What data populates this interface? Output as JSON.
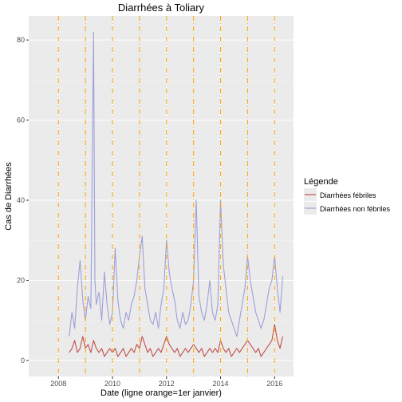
{
  "chart_data": {
    "type": "line",
    "title": "Diarrhées à Toliary",
    "xlabel": "Date (ligne orange=1er janvier)",
    "ylabel": "Cas de Diarrhées",
    "xlim": [
      2006.9,
      2016.7
    ],
    "ylim": [
      -4,
      86
    ],
    "x_ticks": [
      2008,
      2010,
      2012,
      2014,
      2016
    ],
    "y_ticks": [
      0,
      20,
      40,
      60,
      80
    ],
    "january_lines": [
      2008,
      2009,
      2010,
      2011,
      2012,
      2013,
      2014,
      2015,
      2016
    ],
    "grid": true,
    "legend": {
      "title": "Légende",
      "position": "right"
    },
    "colors": {
      "panel_bg": "#ebebeb",
      "grid_major": "#ffffff",
      "january_line": "#ffa500",
      "febrile": "#c0504d",
      "non_febrile": "#9f9fd8"
    },
    "series": [
      {
        "name": "Diarrhées fébriles",
        "points": [
          [
            2008.4,
            2
          ],
          [
            2008.5,
            3
          ],
          [
            2008.6,
            5
          ],
          [
            2008.7,
            2
          ],
          [
            2008.8,
            3
          ],
          [
            2008.9,
            6
          ],
          [
            2009.0,
            3
          ],
          [
            2009.1,
            4
          ],
          [
            2009.2,
            2
          ],
          [
            2009.3,
            5
          ],
          [
            2009.4,
            3
          ],
          [
            2009.5,
            2
          ],
          [
            2009.6,
            3
          ],
          [
            2009.7,
            1
          ],
          [
            2009.8,
            2
          ],
          [
            2009.9,
            3
          ],
          [
            2010.0,
            2
          ],
          [
            2010.1,
            3
          ],
          [
            2010.2,
            1
          ],
          [
            2010.3,
            2
          ],
          [
            2010.4,
            3
          ],
          [
            2010.5,
            1
          ],
          [
            2010.6,
            2
          ],
          [
            2010.7,
            3
          ],
          [
            2010.8,
            2
          ],
          [
            2010.9,
            4
          ],
          [
            2011.0,
            3
          ],
          [
            2011.1,
            6
          ],
          [
            2011.2,
            4
          ],
          [
            2011.3,
            2
          ],
          [
            2011.4,
            3
          ],
          [
            2011.5,
            1
          ],
          [
            2011.6,
            2
          ],
          [
            2011.7,
            3
          ],
          [
            2011.8,
            2
          ],
          [
            2011.9,
            4
          ],
          [
            2012.0,
            6
          ],
          [
            2012.1,
            4
          ],
          [
            2012.2,
            3
          ],
          [
            2012.3,
            2
          ],
          [
            2012.4,
            3
          ],
          [
            2012.5,
            1
          ],
          [
            2012.6,
            2
          ],
          [
            2012.7,
            3
          ],
          [
            2012.8,
            2
          ],
          [
            2012.9,
            3
          ],
          [
            2013.0,
            4
          ],
          [
            2013.1,
            3
          ],
          [
            2013.2,
            2
          ],
          [
            2013.3,
            3
          ],
          [
            2013.4,
            1
          ],
          [
            2013.5,
            2
          ],
          [
            2013.6,
            3
          ],
          [
            2013.7,
            2
          ],
          [
            2013.8,
            3
          ],
          [
            2013.9,
            2
          ],
          [
            2014.0,
            5
          ],
          [
            2014.1,
            3
          ],
          [
            2014.2,
            2
          ],
          [
            2014.3,
            3
          ],
          [
            2014.4,
            1
          ],
          [
            2014.5,
            2
          ],
          [
            2014.6,
            3
          ],
          [
            2014.7,
            2
          ],
          [
            2014.8,
            3
          ],
          [
            2014.9,
            4
          ],
          [
            2015.0,
            5
          ],
          [
            2015.1,
            4
          ],
          [
            2015.2,
            3
          ],
          [
            2015.3,
            2
          ],
          [
            2015.4,
            3
          ],
          [
            2015.5,
            1
          ],
          [
            2015.6,
            2
          ],
          [
            2015.7,
            3
          ],
          [
            2015.8,
            4
          ],
          [
            2015.9,
            5
          ],
          [
            2016.0,
            9
          ],
          [
            2016.1,
            5
          ],
          [
            2016.2,
            3
          ],
          [
            2016.3,
            6
          ]
        ]
      },
      {
        "name": "Diarrhées non fébriles",
        "points": [
          [
            2008.4,
            6
          ],
          [
            2008.5,
            12
          ],
          [
            2008.6,
            8
          ],
          [
            2008.7,
            18
          ],
          [
            2008.8,
            25
          ],
          [
            2008.9,
            15
          ],
          [
            2009.0,
            10
          ],
          [
            2009.1,
            16
          ],
          [
            2009.2,
            13
          ],
          [
            2009.3,
            82
          ],
          [
            2009.35,
            20
          ],
          [
            2009.4,
            14
          ],
          [
            2009.5,
            17
          ],
          [
            2009.6,
            10
          ],
          [
            2009.7,
            22
          ],
          [
            2009.8,
            14
          ],
          [
            2009.9,
            9
          ],
          [
            2010.0,
            12
          ],
          [
            2010.1,
            28
          ],
          [
            2010.2,
            15
          ],
          [
            2010.3,
            10
          ],
          [
            2010.4,
            8
          ],
          [
            2010.5,
            12
          ],
          [
            2010.6,
            10
          ],
          [
            2010.7,
            14
          ],
          [
            2010.8,
            16
          ],
          [
            2010.9,
            20
          ],
          [
            2011.0,
            26
          ],
          [
            2011.1,
            31
          ],
          [
            2011.2,
            18
          ],
          [
            2011.3,
            14
          ],
          [
            2011.4,
            10
          ],
          [
            2011.5,
            9
          ],
          [
            2011.6,
            12
          ],
          [
            2011.7,
            8
          ],
          [
            2011.8,
            14
          ],
          [
            2011.9,
            18
          ],
          [
            2012.0,
            30
          ],
          [
            2012.1,
            22
          ],
          [
            2012.2,
            18
          ],
          [
            2012.3,
            15
          ],
          [
            2012.4,
            10
          ],
          [
            2012.5,
            8
          ],
          [
            2012.6,
            12
          ],
          [
            2012.7,
            9
          ],
          [
            2012.8,
            10
          ],
          [
            2012.9,
            14
          ],
          [
            2013.0,
            20
          ],
          [
            2013.1,
            40
          ],
          [
            2013.2,
            16
          ],
          [
            2013.3,
            12
          ],
          [
            2013.4,
            10
          ],
          [
            2013.5,
            14
          ],
          [
            2013.6,
            20
          ],
          [
            2013.7,
            12
          ],
          [
            2013.8,
            10
          ],
          [
            2013.9,
            14
          ],
          [
            2014.0,
            40
          ],
          [
            2014.1,
            24
          ],
          [
            2014.2,
            18
          ],
          [
            2014.3,
            12
          ],
          [
            2014.4,
            10
          ],
          [
            2014.5,
            8
          ],
          [
            2014.6,
            6
          ],
          [
            2014.7,
            10
          ],
          [
            2014.8,
            14
          ],
          [
            2014.9,
            18
          ],
          [
            2015.0,
            26
          ],
          [
            2015.1,
            20
          ],
          [
            2015.2,
            16
          ],
          [
            2015.3,
            12
          ],
          [
            2015.4,
            10
          ],
          [
            2015.5,
            8
          ],
          [
            2015.6,
            10
          ],
          [
            2015.7,
            14
          ],
          [
            2015.8,
            18
          ],
          [
            2015.9,
            20
          ],
          [
            2016.0,
            26
          ],
          [
            2016.1,
            18
          ],
          [
            2016.2,
            12
          ],
          [
            2016.3,
            21
          ]
        ]
      }
    ]
  }
}
